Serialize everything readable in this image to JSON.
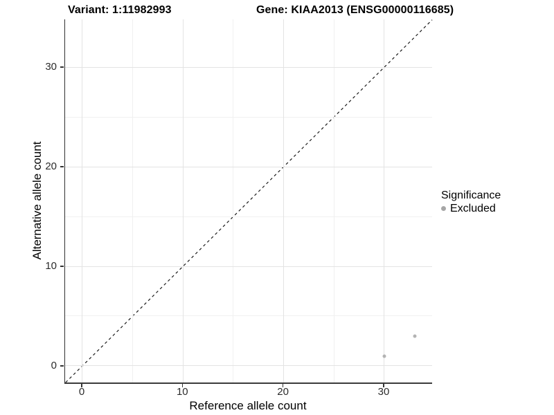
{
  "chart_data": {
    "type": "scatter",
    "title_left": "Variant: 1:11982993",
    "title_right": "Gene: KIAA2013 (ENSG00000116685)",
    "xlabel": "Reference allele count",
    "ylabel": "Alternative allele count",
    "xlim": [
      -1.72,
      34.75
    ],
    "ylim": [
      -1.67,
      34.8
    ],
    "x_major_ticks": [
      0,
      10,
      20,
      30
    ],
    "y_major_ticks": [
      0,
      10,
      20,
      30
    ],
    "x_minor_gridlines": [
      5,
      15,
      25
    ],
    "y_minor_gridlines": [
      5,
      15,
      25
    ],
    "grid": true,
    "background": "#ffffff",
    "identity_line": {
      "equation": "y = x",
      "style": "dashed",
      "color": "#1a1a1a"
    },
    "series": [
      {
        "name": "Excluded",
        "color": "#b3b3b3",
        "points": [
          {
            "x": 30,
            "y": 1
          },
          {
            "x": 33,
            "y": 3
          }
        ]
      }
    ],
    "legend": {
      "title": "Significance",
      "position": "right",
      "entries": [
        {
          "label": "Excluded",
          "color": "#a6a6a6"
        }
      ]
    }
  }
}
